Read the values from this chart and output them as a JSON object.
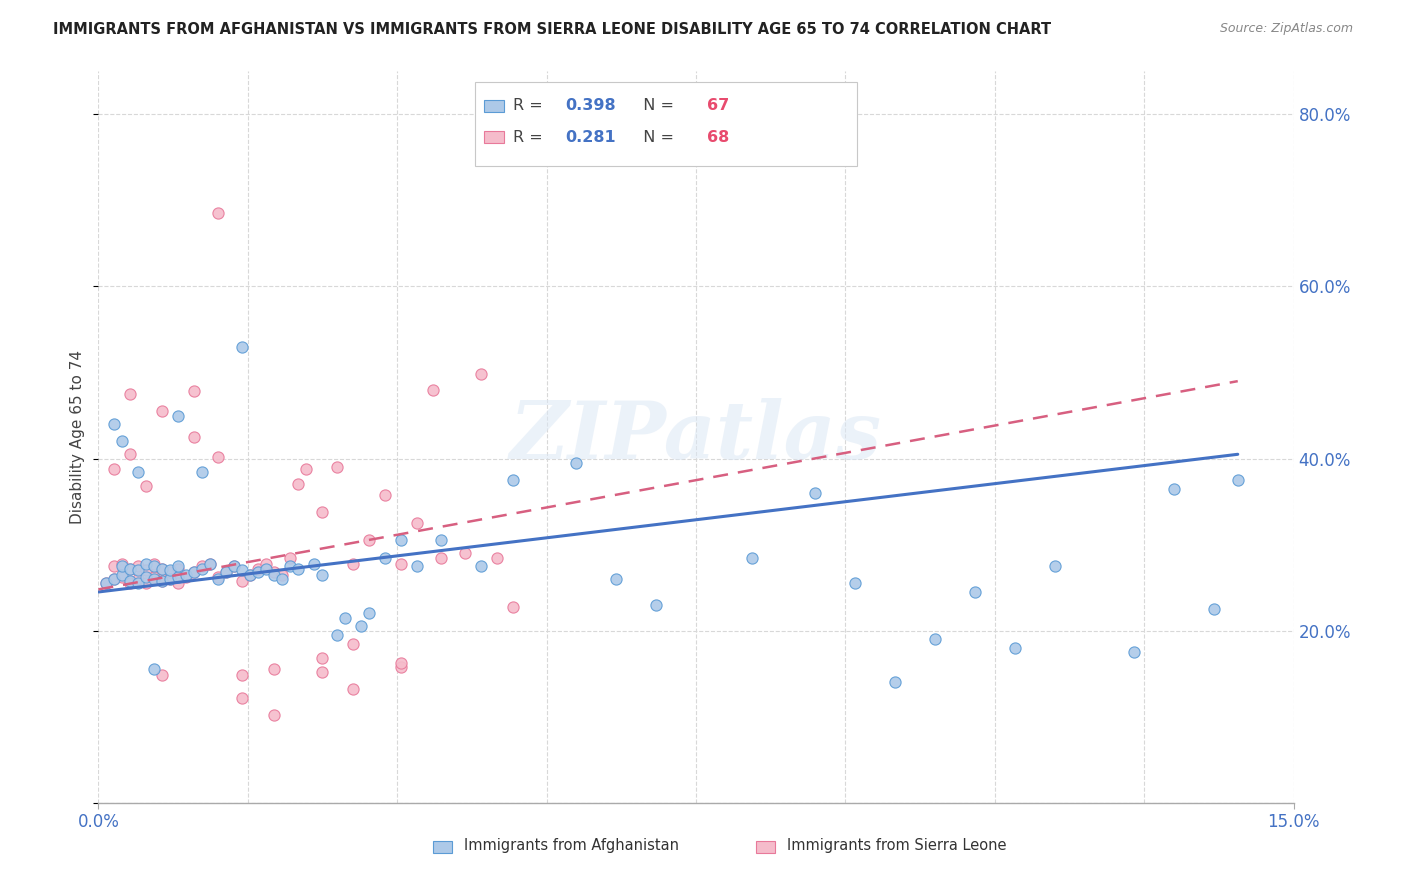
{
  "title": "IMMIGRANTS FROM AFGHANISTAN VS IMMIGRANTS FROM SIERRA LEONE DISABILITY AGE 65 TO 74 CORRELATION CHART",
  "source": "Source: ZipAtlas.com",
  "ylabel": "Disability Age 65 to 74",
  "xlim": [
    0.0,
    0.15
  ],
  "ylim": [
    0.0,
    0.85
  ],
  "yticks": [
    0.0,
    0.2,
    0.4,
    0.6,
    0.8
  ],
  "ytick_labels": [
    "",
    "20.0%",
    "40.0%",
    "60.0%",
    "80.0%"
  ],
  "xticks": [
    0.0,
    0.15
  ],
  "xtick_labels": [
    "0.0%",
    "15.0%"
  ],
  "afghanistan_color": "#adc9e8",
  "afghanistan_edge": "#5b9bd5",
  "sierraleone_color": "#f5bccb",
  "sierraleone_edge": "#e8799a",
  "afghanistan_R": 0.398,
  "afghanistan_N": 67,
  "sierraleone_R": 0.281,
  "sierraleone_N": 68,
  "trend_afghanistan_color": "#4472c4",
  "trend_sierraleone_color": "#d75f80",
  "watermark": "ZIPatlas",
  "legend_label_afghanistan": "Immigrants from Afghanistan",
  "legend_label_sierraleone": "Immigrants from Sierra Leone",
  "af_x": [
    0.001,
    0.002,
    0.003,
    0.003,
    0.004,
    0.004,
    0.005,
    0.005,
    0.006,
    0.006,
    0.007,
    0.007,
    0.008,
    0.008,
    0.009,
    0.009,
    0.01,
    0.01,
    0.011,
    0.012,
    0.013,
    0.014,
    0.015,
    0.016,
    0.017,
    0.018,
    0.019,
    0.02,
    0.021,
    0.022,
    0.023,
    0.024,
    0.025,
    0.027,
    0.028,
    0.03,
    0.031,
    0.033,
    0.034,
    0.036,
    0.038,
    0.04,
    0.043,
    0.048,
    0.052,
    0.06,
    0.065,
    0.07,
    0.082,
    0.09,
    0.095,
    0.1,
    0.105,
    0.11,
    0.115,
    0.12,
    0.13,
    0.135,
    0.14,
    0.143,
    0.002,
    0.003,
    0.005,
    0.007,
    0.01,
    0.013,
    0.018
  ],
  "af_y": [
    0.255,
    0.26,
    0.265,
    0.275,
    0.258,
    0.272,
    0.255,
    0.27,
    0.262,
    0.278,
    0.26,
    0.275,
    0.258,
    0.272,
    0.26,
    0.27,
    0.262,
    0.275,
    0.265,
    0.268,
    0.272,
    0.278,
    0.26,
    0.268,
    0.275,
    0.27,
    0.265,
    0.268,
    0.272,
    0.265,
    0.26,
    0.275,
    0.272,
    0.278,
    0.265,
    0.195,
    0.215,
    0.205,
    0.22,
    0.285,
    0.305,
    0.275,
    0.305,
    0.275,
    0.375,
    0.395,
    0.26,
    0.23,
    0.285,
    0.36,
    0.255,
    0.14,
    0.19,
    0.245,
    0.18,
    0.275,
    0.175,
    0.365,
    0.225,
    0.375,
    0.44,
    0.42,
    0.385,
    0.155,
    0.45,
    0.385,
    0.53
  ],
  "sl_x": [
    0.001,
    0.002,
    0.002,
    0.003,
    0.003,
    0.004,
    0.004,
    0.005,
    0.005,
    0.006,
    0.006,
    0.007,
    0.007,
    0.008,
    0.008,
    0.009,
    0.009,
    0.01,
    0.01,
    0.011,
    0.012,
    0.013,
    0.014,
    0.015,
    0.016,
    0.017,
    0.018,
    0.019,
    0.02,
    0.021,
    0.022,
    0.023,
    0.024,
    0.025,
    0.026,
    0.028,
    0.03,
    0.032,
    0.034,
    0.036,
    0.038,
    0.04,
    0.043,
    0.046,
    0.05,
    0.002,
    0.004,
    0.006,
    0.008,
    0.012,
    0.015,
    0.018,
    0.022,
    0.028,
    0.032,
    0.038,
    0.042,
    0.048,
    0.052,
    0.012,
    0.015,
    0.018,
    0.022,
    0.028,
    0.032,
    0.038,
    0.004,
    0.008
  ],
  "sl_y": [
    0.255,
    0.26,
    0.275,
    0.262,
    0.278,
    0.255,
    0.272,
    0.26,
    0.275,
    0.255,
    0.27,
    0.262,
    0.278,
    0.258,
    0.272,
    0.26,
    0.268,
    0.255,
    0.272,
    0.262,
    0.268,
    0.275,
    0.278,
    0.262,
    0.268,
    0.275,
    0.258,
    0.265,
    0.272,
    0.278,
    0.268,
    0.265,
    0.285,
    0.37,
    0.388,
    0.338,
    0.39,
    0.278,
    0.305,
    0.358,
    0.278,
    0.325,
    0.285,
    0.29,
    0.285,
    0.388,
    0.405,
    0.368,
    0.455,
    0.425,
    0.402,
    0.148,
    0.155,
    0.168,
    0.185,
    0.158,
    0.48,
    0.498,
    0.228,
    0.478,
    0.685,
    0.122,
    0.102,
    0.152,
    0.132,
    0.162,
    0.475,
    0.148
  ],
  "af_trend_x0": 0.0,
  "af_trend_x1": 0.143,
  "af_trend_y0": 0.245,
  "af_trend_y1": 0.405,
  "sl_trend_x0": 0.0,
  "sl_trend_x1": 0.143,
  "sl_trend_y0": 0.248,
  "sl_trend_y1": 0.49
}
